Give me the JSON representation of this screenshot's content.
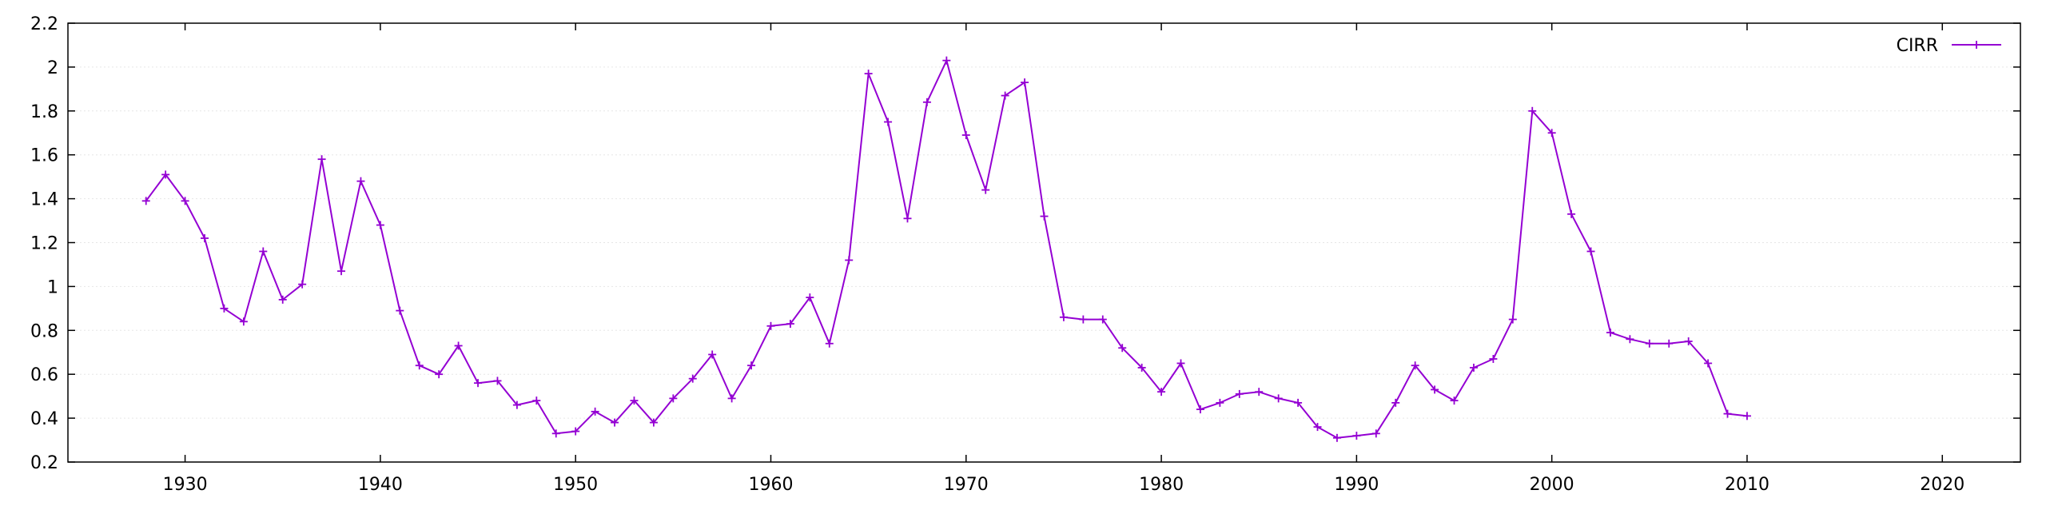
{
  "chart_data": {
    "type": "line",
    "title": "",
    "xlabel": "",
    "ylabel": "",
    "xlim": [
      1924,
      2024
    ],
    "ylim": [
      0.2,
      2.2
    ],
    "x_ticks": [
      1930,
      1940,
      1950,
      1960,
      1970,
      1980,
      1990,
      2000,
      2010,
      2020
    ],
    "y_ticks": [
      0.2,
      0.4,
      0.6,
      0.8,
      1,
      1.2,
      1.4,
      1.6,
      1.8,
      2,
      2.2
    ],
    "grid": true,
    "legend_position": "top-right",
    "colors": {
      "series": "#9400d3",
      "axis": "#000000",
      "grid": "#e6e6e6"
    },
    "series": [
      {
        "name": "CIRR",
        "x": [
          1928,
          1929,
          1930,
          1931,
          1932,
          1933,
          1934,
          1935,
          1936,
          1937,
          1938,
          1939,
          1940,
          1941,
          1942,
          1943,
          1944,
          1945,
          1946,
          1947,
          1948,
          1949,
          1950,
          1951,
          1952,
          1953,
          1954,
          1955,
          1956,
          1957,
          1958,
          1959,
          1960,
          1961,
          1962,
          1963,
          1964,
          1965,
          1966,
          1967,
          1968,
          1969,
          1970,
          1971,
          1972,
          1973,
          1974,
          1975,
          1976,
          1977,
          1978,
          1979,
          1980,
          1981,
          1982,
          1983,
          1984,
          1985,
          1986,
          1987,
          1988,
          1989,
          1990,
          1991,
          1992,
          1993,
          1994,
          1995,
          1996,
          1997,
          1998,
          1999,
          2000,
          2001,
          2002,
          2003,
          2004,
          2005,
          2006,
          2007,
          2008,
          2009,
          2010
        ],
        "values": [
          1.39,
          1.51,
          1.39,
          1.22,
          0.9,
          0.84,
          1.16,
          0.94,
          1.01,
          1.58,
          1.07,
          1.48,
          1.28,
          0.89,
          0.64,
          0.6,
          0.73,
          0.56,
          0.57,
          0.46,
          0.48,
          0.33,
          0.34,
          0.43,
          0.38,
          0.48,
          0.38,
          0.49,
          0.58,
          0.69,
          0.49,
          0.64,
          0.82,
          0.83,
          0.95,
          0.74,
          1.12,
          1.97,
          1.75,
          1.31,
          1.84,
          2.03,
          1.69,
          1.44,
          1.87,
          1.93,
          1.32,
          0.86,
          0.85,
          0.85,
          0.72,
          0.63,
          0.52,
          0.65,
          0.44,
          0.47,
          0.51,
          0.52,
          0.49,
          0.47,
          0.36,
          0.31,
          0.32,
          0.33,
          0.47,
          0.64,
          0.53,
          0.48,
          0.63,
          0.67,
          0.85,
          1.8,
          1.7,
          1.33,
          1.16,
          0.79,
          0.76,
          0.74,
          0.74,
          0.75,
          0.65,
          0.42,
          0.41
        ]
      }
    ]
  }
}
